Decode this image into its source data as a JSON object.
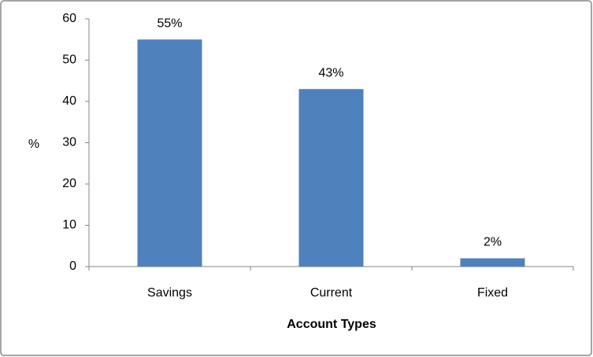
{
  "chart_data": {
    "type": "bar",
    "x_label": "Account Types",
    "y_label": "%",
    "categories": [
      "Savings",
      "Current",
      "Fixed"
    ],
    "values": [
      55,
      43,
      2
    ],
    "value_labels": [
      "55%",
      "43%",
      "2%"
    ],
    "color": "#4f81bd",
    "ylim": [
      0,
      60
    ],
    "yticks": [
      0,
      10,
      20,
      30,
      40,
      50,
      60
    ],
    "grid": false
  }
}
